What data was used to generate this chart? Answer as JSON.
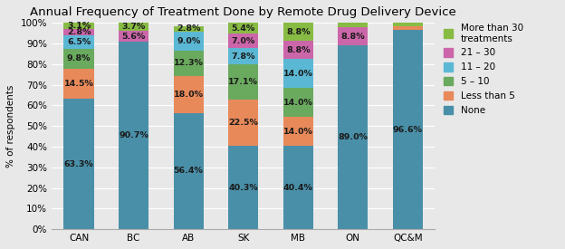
{
  "title": "Annual Frequency of Treatment Done by Remote Drug Delivery Device",
  "categories": [
    "CAN",
    "BC",
    "AB",
    "SK",
    "MB",
    "ON",
    "QC&M"
  ],
  "ylabel": "% of respondents",
  "series": [
    {
      "label": "None",
      "color": "#4a8fa8",
      "values": [
        63.3,
        90.7,
        56.4,
        40.3,
        40.4,
        89.0,
        96.6
      ]
    },
    {
      "label": "Less than 5",
      "color": "#e8895a",
      "values": [
        14.5,
        0.0,
        18.0,
        22.5,
        14.0,
        0.0,
        1.7
      ]
    },
    {
      "label": "5 – 10",
      "color": "#6aaa5e",
      "values": [
        9.8,
        0.0,
        12.3,
        17.1,
        14.0,
        0.0,
        0.0
      ]
    },
    {
      "label": "11 – 20",
      "color": "#5bb8d4",
      "values": [
        6.5,
        0.0,
        9.0,
        7.8,
        14.0,
        0.0,
        0.0
      ]
    },
    {
      "label": "21 – 30",
      "color": "#cc66aa",
      "values": [
        2.8,
        5.6,
        0.0,
        7.0,
        8.8,
        8.8,
        0.0
      ]
    },
    {
      "label": "More than 30\ntreatments",
      "color": "#88bb44",
      "values": [
        3.1,
        3.7,
        2.8,
        5.4,
        8.8,
        2.2,
        1.7
      ]
    }
  ],
  "labels": [
    [
      "63.3%",
      "14.5%",
      "9.8%",
      "6.5%",
      "2.8%",
      "3.1%"
    ],
    [
      "90.7%",
      "",
      "",
      "",
      "5.6%",
      "3.7%"
    ],
    [
      "56.4%",
      "18.0%",
      "12.3%",
      "9.0%",
      "",
      "2.8%"
    ],
    [
      "40.3%",
      "22.5%",
      "17.1%",
      "7.8%",
      "7.0%",
      "5.4%"
    ],
    [
      "40.4%",
      "14.0%",
      "14.0%",
      "14.0%",
      "8.8%",
      "8.8%"
    ],
    [
      "89.0%",
      "",
      "",
      "",
      "8.8%",
      "2.2%"
    ],
    [
      "96.6%",
      "",
      "",
      "",
      "",
      ""
    ]
  ],
  "ylim": [
    0,
    100
  ],
  "yticks": [
    0,
    10,
    20,
    30,
    40,
    50,
    60,
    70,
    80,
    90,
    100
  ],
  "ytick_labels": [
    "0%",
    "10%",
    "20%",
    "30%",
    "40%",
    "50%",
    "60%",
    "70%",
    "80%",
    "90%",
    "100%"
  ],
  "background_color": "#e8e8e8",
  "plot_bg_color": "#e8e8e8",
  "bar_width": 0.55,
  "title_fontsize": 9.5,
  "label_fontsize": 6.8,
  "legend_fontsize": 7.5,
  "axis_fontsize": 7.5,
  "label_color": "#1a1a1a"
}
